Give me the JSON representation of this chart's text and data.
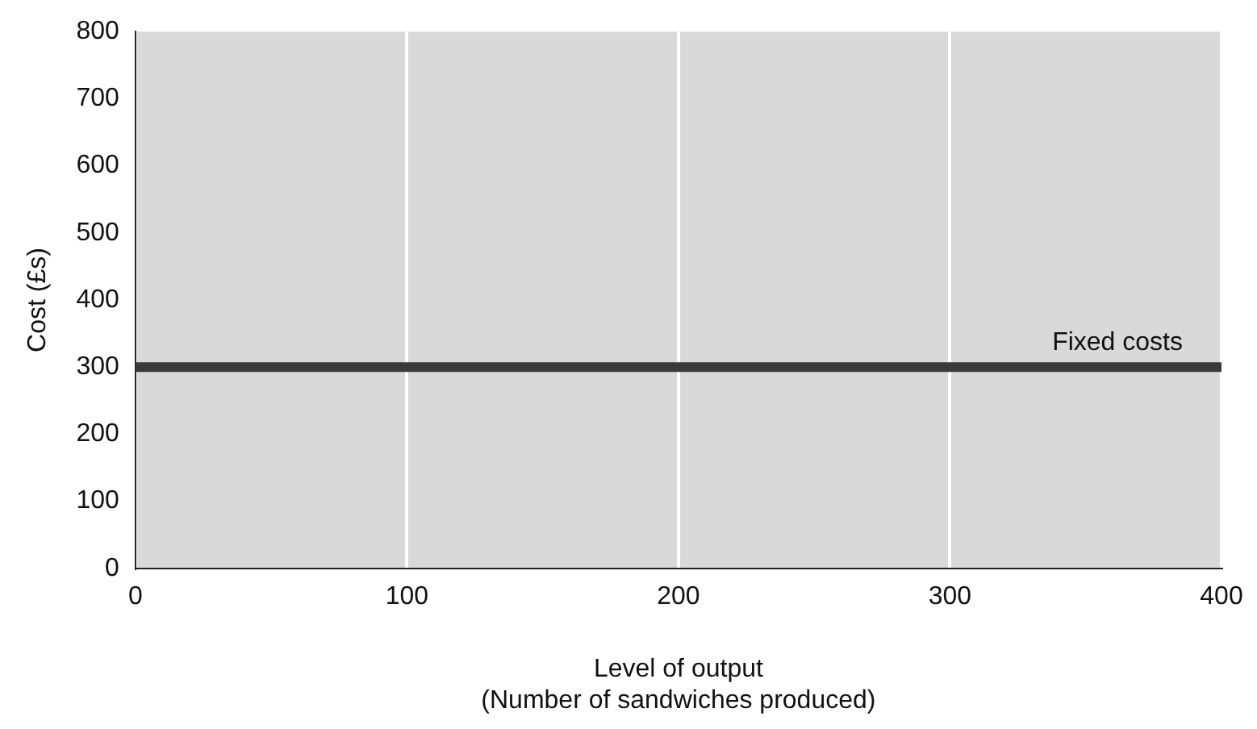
{
  "chart_data": {
    "type": "line",
    "xlabel": "Level of output\n(Number of sandwiches produced)",
    "ylabel": "Cost (£s)",
    "x": [
      0,
      400
    ],
    "series": [
      {
        "name": "Fixed costs",
        "color": "#3a3a3a",
        "values": [
          300,
          300
        ]
      }
    ],
    "xlim": [
      0,
      400
    ],
    "xticks": [
      0,
      100,
      200,
      300,
      400
    ],
    "ylim": [
      0,
      800
    ],
    "yticks": [
      0,
      100,
      200,
      300,
      400,
      500,
      600,
      700,
      800
    ],
    "grid": "x",
    "legend": false,
    "marker": "none",
    "line_style": "solid"
  }
}
